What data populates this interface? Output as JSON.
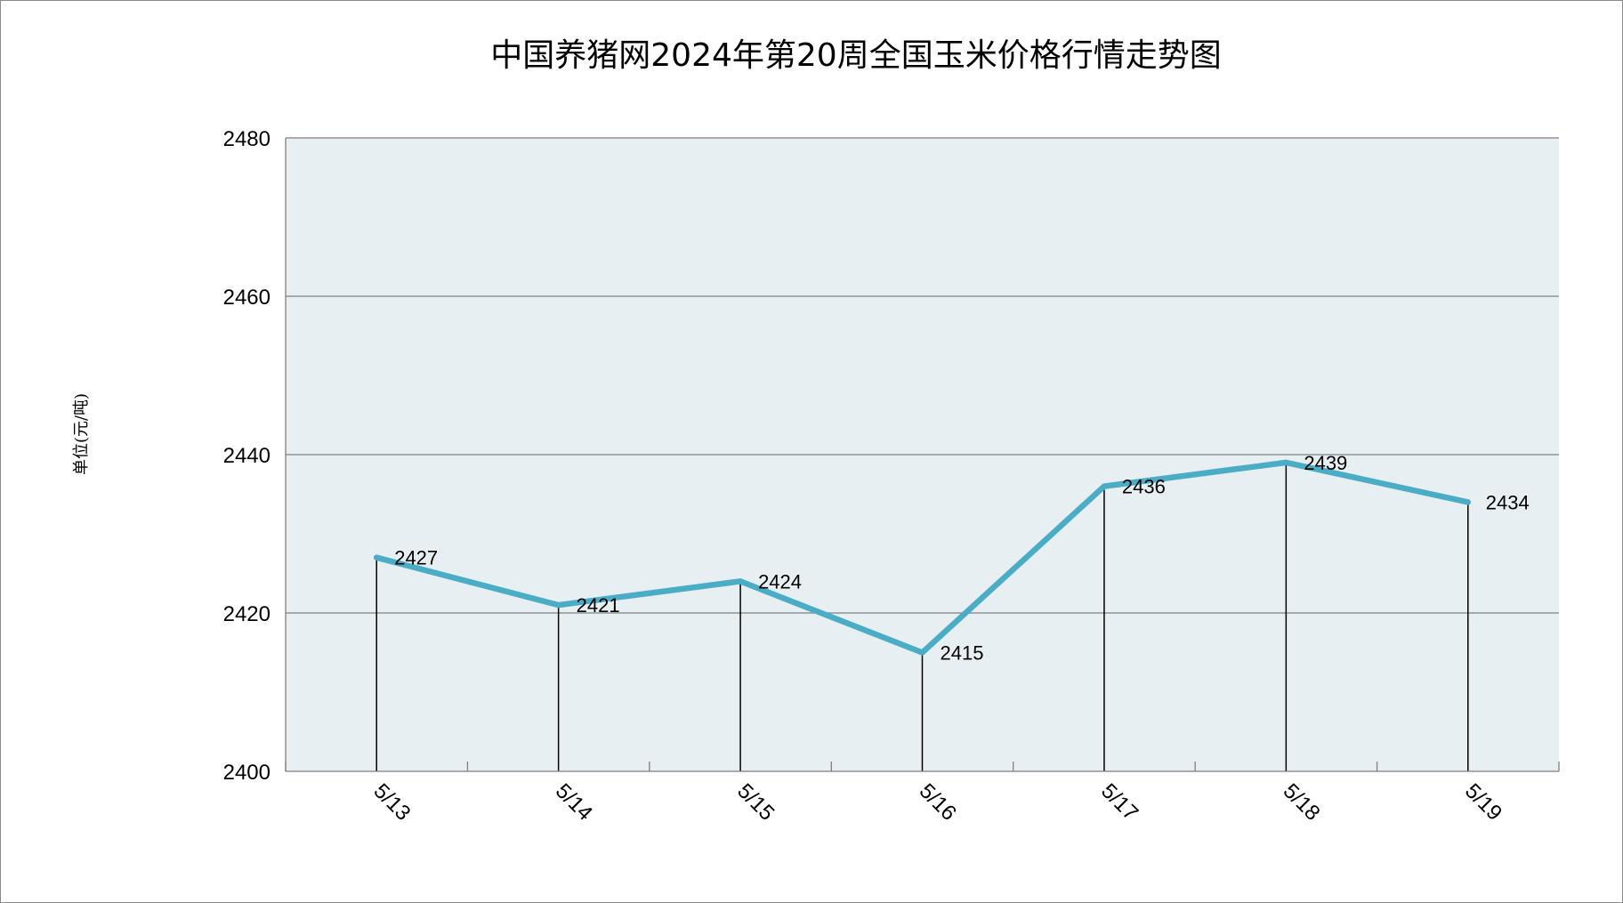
{
  "chart_data": {
    "type": "line",
    "title": "中国养猪网2024年第20周全国玉米价格行情走势图",
    "ylabel": "单位(元/吨)",
    "xlabel": "",
    "categories": [
      "5/13",
      "5/14",
      "5/15",
      "5/16",
      "5/17",
      "5/18",
      "5/19"
    ],
    "values": [
      2427,
      2421,
      2424,
      2415,
      2436,
      2439,
      2434
    ],
    "ylim": [
      2400,
      2480
    ],
    "yticks": [
      "2400",
      "2420",
      "2440",
      "2460",
      "2480"
    ],
    "data_labels": [
      "2427",
      "2421",
      "2424",
      "2415",
      "2436",
      "2439",
      "2434"
    ],
    "grid": true,
    "legend": "none",
    "colors": {
      "line": "#4bacc6",
      "plot_background": "#e8eff3",
      "gridline": "#7f7f7f",
      "drop_line": "#000000"
    }
  }
}
